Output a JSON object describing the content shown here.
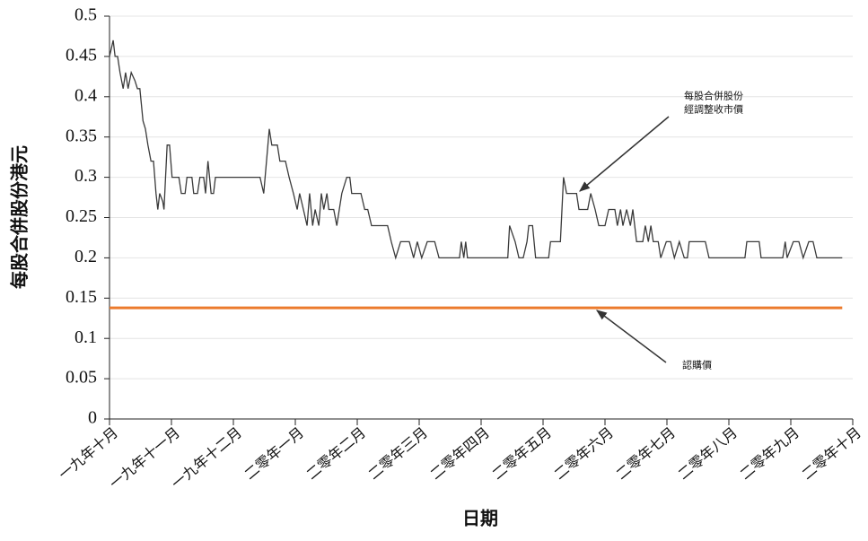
{
  "chart_data": {
    "type": "line",
    "xlabel": "日期",
    "ylabel": "每股合併股份港元",
    "xlim": [
      0,
      12
    ],
    "xticks": [
      {
        "value": 0,
        "label": "一九年十月"
      },
      {
        "value": 1,
        "label": "一九年十一月"
      },
      {
        "value": 2,
        "label": "一九年十二月"
      },
      {
        "value": 3,
        "label": "二零年一月"
      },
      {
        "value": 4,
        "label": "二零年二月"
      },
      {
        "value": 5,
        "label": "二零年三月"
      },
      {
        "value": 6,
        "label": "二零年四月"
      },
      {
        "value": 7,
        "label": "二零年五月"
      },
      {
        "value": 8,
        "label": "二零年六月"
      },
      {
        "value": 9,
        "label": "二零年七月"
      },
      {
        "value": 10,
        "label": "二零年八月"
      },
      {
        "value": 11,
        "label": "二零年九月"
      },
      {
        "value": 12,
        "label": "二零年十月"
      }
    ],
    "ylim": [
      0,
      0.5
    ],
    "yticks": [
      0,
      0.05,
      0.1,
      0.15,
      0.2,
      0.25,
      0.3,
      0.35,
      0.4,
      0.45,
      0.5
    ],
    "grid": true,
    "series": [
      {
        "name": "每股合併股份經調整收市價",
        "color": "#3a3a3a",
        "x": [
          0,
          0.03,
          0.06,
          0.09,
          0.13,
          0.17,
          0.22,
          0.26,
          0.3,
          0.35,
          0.41,
          0.45,
          0.49,
          0.54,
          0.58,
          0.62,
          0.67,
          0.71,
          0.75,
          0.78,
          0.81,
          0.86,
          0.88,
          0.93,
          0.97,
          1.01,
          1.12,
          1.16,
          1.22,
          1.25,
          1.33,
          1.36,
          1.42,
          1.46,
          1.52,
          1.55,
          1.59,
          1.64,
          1.68,
          1.71,
          2.43,
          2.49,
          2.58,
          2.62,
          2.71,
          2.75,
          2.84,
          2.9,
          2.97,
          3.03,
          3.07,
          3.13,
          3.19,
          3.23,
          3.28,
          3.32,
          3.38,
          3.42,
          3.46,
          3.51,
          3.54,
          3.62,
          3.67,
          3.71,
          3.75,
          3.83,
          3.88,
          3.91,
          4.06,
          4.12,
          4.17,
          4.23,
          4.49,
          4.55,
          4.62,
          4.7,
          4.84,
          4.91,
          4.97,
          5.04,
          5.13,
          5.25,
          5.32,
          5.65,
          5.68,
          5.72,
          5.75,
          5.78,
          6.43,
          6.46,
          6.55,
          6.61,
          6.68,
          6.74,
          6.77,
          6.83,
          6.88,
          7.09,
          7.12,
          7.28,
          7.33,
          7.38,
          7.54,
          7.58,
          7.72,
          7.77,
          7.84,
          7.9,
          8.0,
          8.06,
          8.16,
          8.2,
          8.25,
          8.29,
          8.35,
          8.41,
          8.45,
          8.51,
          8.61,
          8.65,
          8.7,
          8.74,
          8.78,
          8.86,
          8.9,
          8.99,
          9.06,
          9.12,
          9.2,
          9.28,
          9.33,
          9.36,
          9.62,
          9.68,
          10.26,
          10.29,
          10.49,
          10.52,
          10.87,
          10.91,
          10.94,
          11.04,
          11.13,
          11.2,
          11.29,
          11.36,
          11.42,
          11.83
        ],
        "values": [
          0.45,
          0.46,
          0.47,
          0.45,
          0.45,
          0.43,
          0.41,
          0.43,
          0.41,
          0.43,
          0.42,
          0.41,
          0.41,
          0.37,
          0.36,
          0.34,
          0.32,
          0.32,
          0.28,
          0.26,
          0.28,
          0.27,
          0.26,
          0.34,
          0.34,
          0.3,
          0.3,
          0.28,
          0.28,
          0.3,
          0.3,
          0.28,
          0.28,
          0.3,
          0.3,
          0.28,
          0.32,
          0.28,
          0.28,
          0.3,
          0.3,
          0.28,
          0.36,
          0.34,
          0.34,
          0.32,
          0.32,
          0.3,
          0.28,
          0.26,
          0.28,
          0.26,
          0.24,
          0.28,
          0.24,
          0.26,
          0.24,
          0.28,
          0.26,
          0.28,
          0.26,
          0.26,
          0.24,
          0.26,
          0.28,
          0.3,
          0.3,
          0.28,
          0.28,
          0.26,
          0.26,
          0.24,
          0.24,
          0.22,
          0.2,
          0.22,
          0.22,
          0.2,
          0.22,
          0.2,
          0.22,
          0.22,
          0.2,
          0.2,
          0.22,
          0.2,
          0.22,
          0.2,
          0.2,
          0.24,
          0.22,
          0.2,
          0.2,
          0.22,
          0.24,
          0.24,
          0.2,
          0.2,
          0.22,
          0.22,
          0.3,
          0.28,
          0.28,
          0.26,
          0.26,
          0.28,
          0.26,
          0.24,
          0.24,
          0.26,
          0.26,
          0.24,
          0.26,
          0.24,
          0.26,
          0.24,
          0.26,
          0.22,
          0.22,
          0.24,
          0.22,
          0.24,
          0.22,
          0.22,
          0.2,
          0.22,
          0.22,
          0.2,
          0.22,
          0.2,
          0.2,
          0.22,
          0.22,
          0.2,
          0.2,
          0.22,
          0.22,
          0.2,
          0.2,
          0.22,
          0.2,
          0.22,
          0.22,
          0.2,
          0.22,
          0.22,
          0.2,
          0.2
        ]
      },
      {
        "name": "認購價",
        "color": "#ec7a2c",
        "x": [
          0,
          11.83
        ],
        "values": [
          0.138,
          0.138
        ]
      }
    ],
    "annotations": [
      {
        "text": [
          "每股合併股份",
          "經調整收市價"
        ],
        "series": 0
      },
      {
        "text": [
          "認購價"
        ],
        "series": 1
      }
    ]
  }
}
